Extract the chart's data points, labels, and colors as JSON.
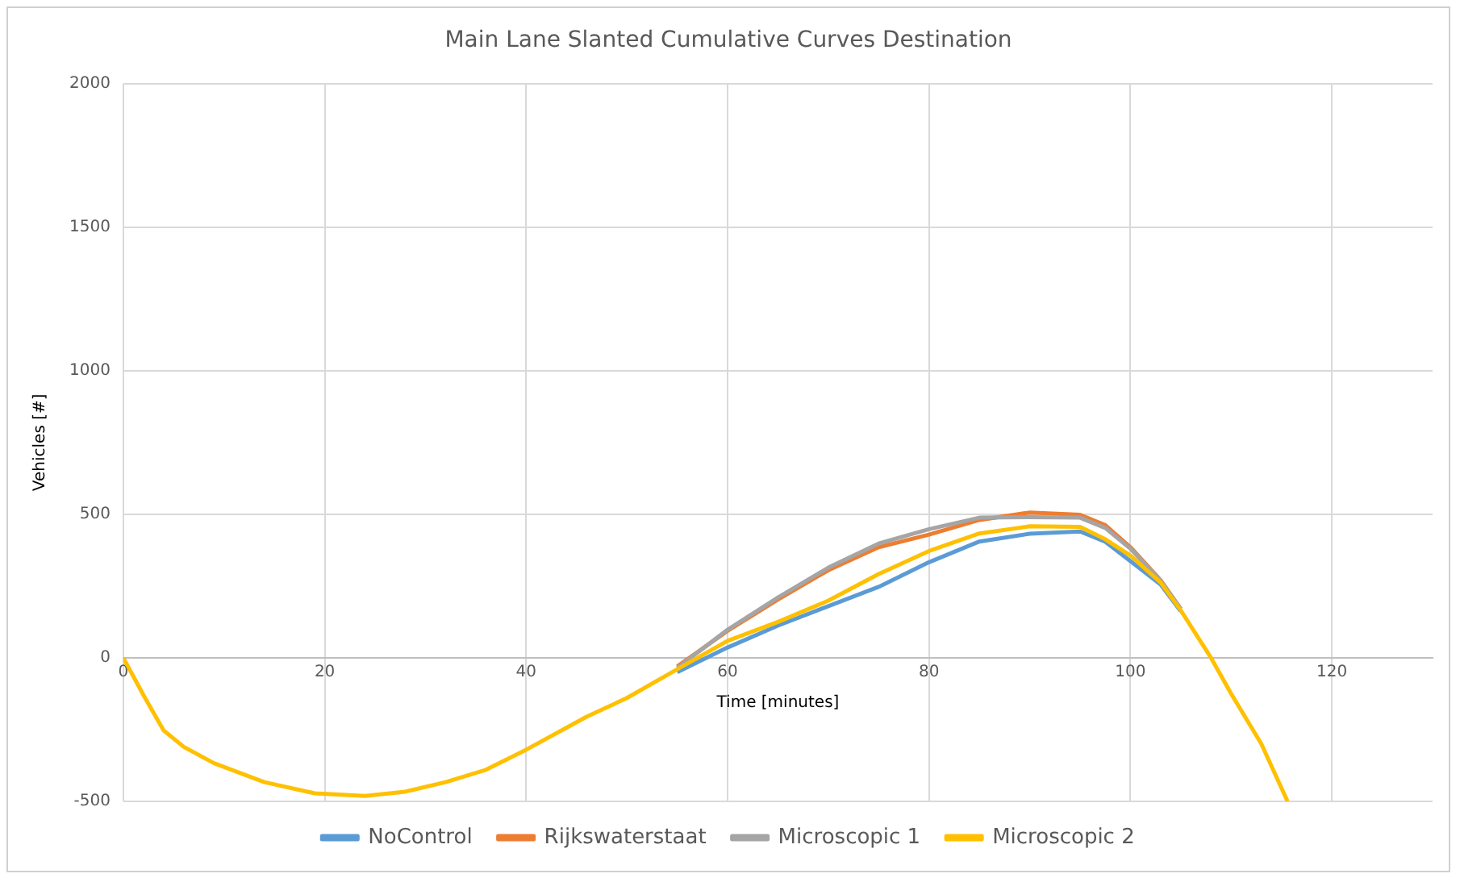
{
  "chart_data": {
    "type": "line",
    "title": "Main Lane Slanted Cumulative Curves Destination",
    "xlabel": "Time [minutes]",
    "ylabel": "Vehicles [#]",
    "x": [
      0,
      2,
      4,
      6,
      9,
      14,
      19,
      24,
      28,
      32,
      36,
      40,
      46,
      50,
      55,
      60,
      65,
      70,
      75,
      80,
      85,
      90,
      95,
      97.5,
      100,
      103,
      105,
      108,
      110,
      113,
      115.6
    ],
    "series": [
      {
        "name": "NoControl",
        "color": "#5b9bd5",
        "values": [
          null,
          null,
          null,
          null,
          null,
          null,
          null,
          null,
          null,
          null,
          null,
          null,
          null,
          null,
          -50,
          36,
          112,
          180,
          247,
          333,
          405,
          432,
          440,
          404,
          337,
          255,
          162,
          null,
          null,
          null,
          null
        ]
      },
      {
        "name": "Rijkswaterstaat",
        "color": "#ed7d31",
        "values": [
          null,
          null,
          null,
          null,
          null,
          null,
          null,
          null,
          null,
          null,
          null,
          null,
          null,
          null,
          -30,
          94,
          203,
          305,
          385,
          429,
          480,
          506,
          498,
          462,
          385,
          270,
          170,
          null,
          null,
          null,
          null
        ]
      },
      {
        "name": "Microscopic 1",
        "color": "#a5a5a5",
        "values": [
          null,
          null,
          null,
          null,
          null,
          null,
          null,
          null,
          null,
          null,
          null,
          null,
          null,
          null,
          -35,
          98,
          210,
          314,
          398,
          448,
          488,
          490,
          488,
          452,
          380,
          268,
          170,
          null,
          null,
          null,
          null
        ]
      },
      {
        "name": "Microscopic 2",
        "color": "#ffc000",
        "values": [
          0,
          -130,
          -253,
          -310,
          -367,
          -433,
          -472,
          -481,
          -466,
          -433,
          -390,
          -320,
          -205,
          -140,
          -40,
          59,
          125,
          199,
          292,
          372,
          433,
          458,
          456,
          413,
          356,
          262,
          165,
          0,
          -125,
          -300,
          -500
        ]
      }
    ],
    "xlim": [
      0,
      130
    ],
    "xticks": [
      0,
      20,
      40,
      60,
      80,
      100,
      120
    ],
    "ylim": [
      -500,
      2000
    ],
    "yticks": [
      -500,
      0,
      500,
      1000,
      1500,
      2000
    ],
    "grid": true,
    "legend": "bottom",
    "marker": "none",
    "line_style": "solid"
  }
}
